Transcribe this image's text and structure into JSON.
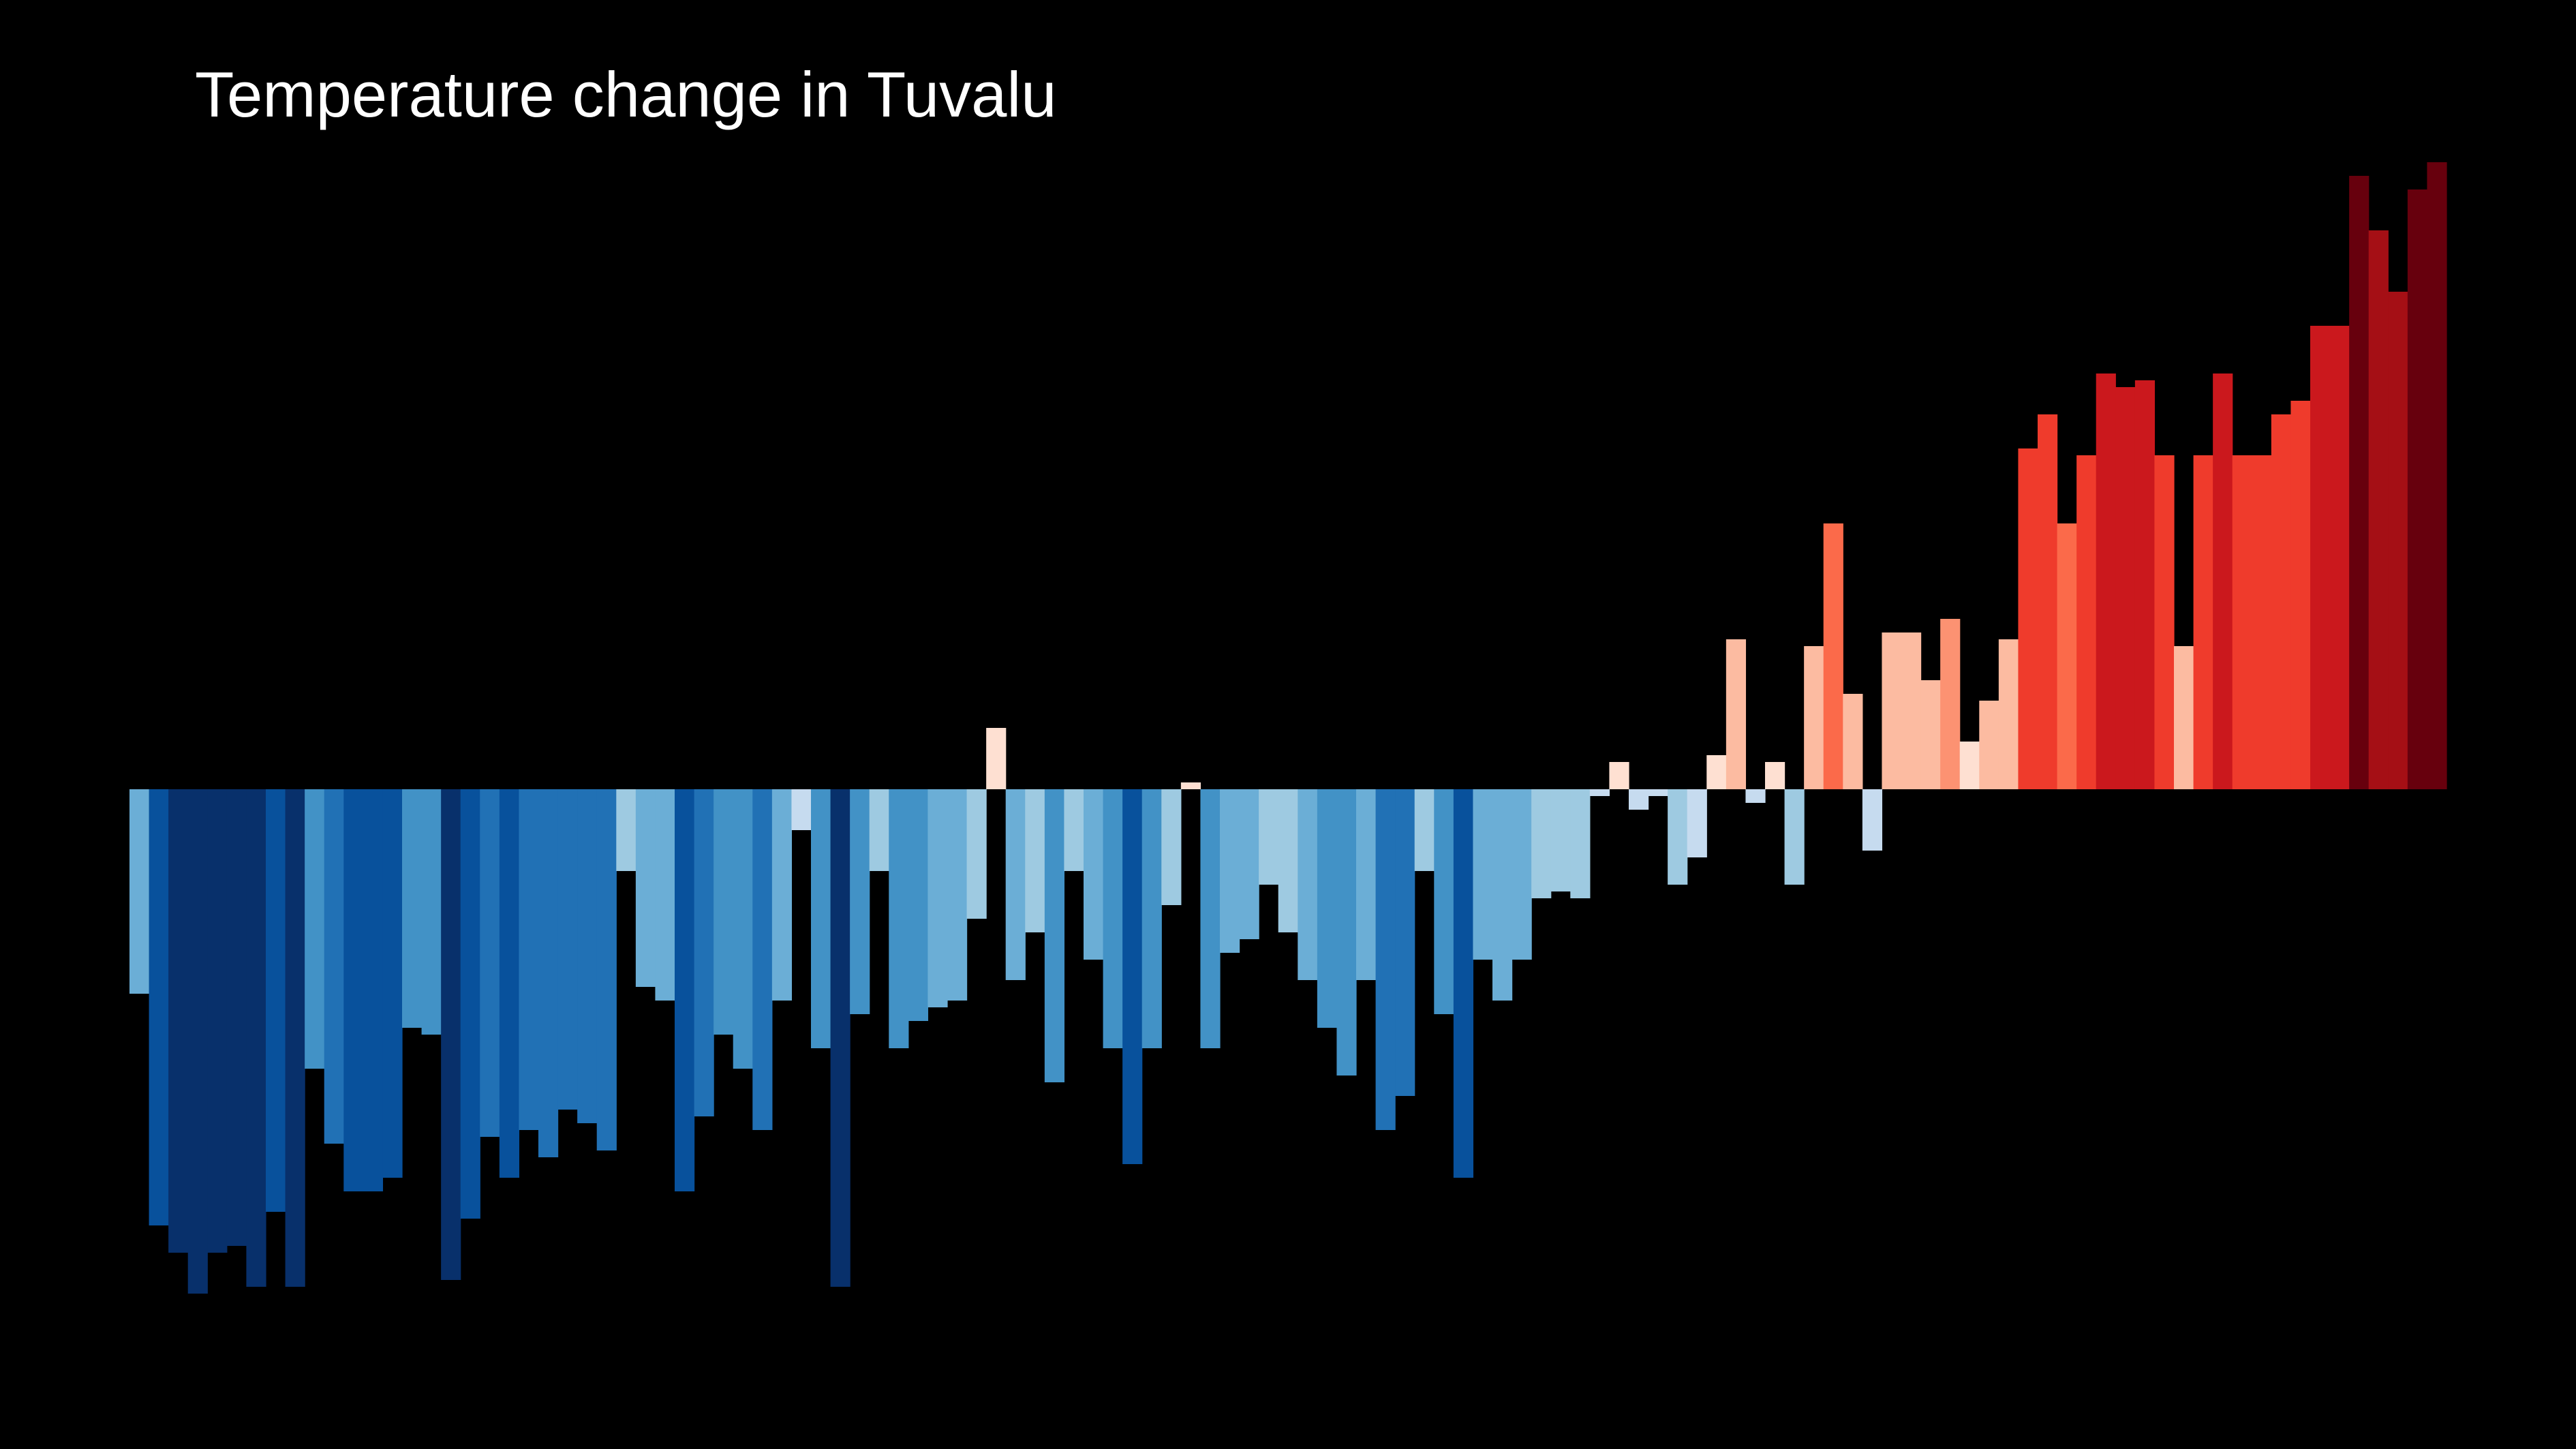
{
  "chart_data": {
    "type": "bar",
    "title": "Temperature change in Tuvalu",
    "xlabel": "",
    "ylabel": "",
    "axes_visible": false,
    "grid": false,
    "legend": "none",
    "background": "#000000",
    "baseline": 0,
    "ylim": [
      -0.76,
      0.94
    ],
    "color_scale": {
      "negative": [
        "#c6dbef",
        "#9ecae1",
        "#6baed6",
        "#4292c6",
        "#2171b5",
        "#08519c",
        "#08306b"
      ],
      "positive": [
        "#fee0d2",
        "#fcbba1",
        "#fc9272",
        "#fb6a4a",
        "#ef3b2c",
        "#cb181d",
        "#a50f15",
        "#67000d"
      ]
    },
    "values": [
      -0.3,
      -0.64,
      -0.68,
      -0.74,
      -0.68,
      -0.67,
      -0.73,
      -0.62,
      -0.73,
      -0.41,
      -0.52,
      -0.59,
      -0.59,
      -0.57,
      -0.35,
      -0.36,
      -0.72,
      -0.63,
      -0.51,
      -0.57,
      -0.5,
      -0.54,
      -0.47,
      -0.49,
      -0.53,
      -0.12,
      -0.29,
      -0.31,
      -0.59,
      -0.48,
      -0.36,
      -0.41,
      -0.5,
      -0.31,
      -0.06,
      -0.38,
      -0.73,
      -0.33,
      -0.12,
      -0.38,
      -0.34,
      -0.32,
      -0.31,
      -0.19,
      0.09,
      -0.28,
      -0.21,
      -0.43,
      -0.12,
      -0.25,
      -0.38,
      -0.55,
      -0.38,
      -0.17,
      0.01,
      -0.38,
      -0.24,
      -0.22,
      -0.14,
      -0.21,
      -0.28,
      -0.35,
      -0.42,
      -0.28,
      -0.5,
      -0.45,
      -0.12,
      -0.33,
      -0.57,
      -0.25,
      -0.31,
      -0.25,
      -0.16,
      -0.15,
      -0.16,
      -0.01,
      0.04,
      -0.03,
      -0.01,
      -0.14,
      -0.1,
      0.05,
      0.22,
      -0.02,
      0.04,
      -0.14,
      0.21,
      0.39,
      0.14,
      -0.09,
      0.23,
      0.23,
      0.16,
      0.25,
      0.07,
      0.13,
      0.22,
      0.5,
      0.55,
      0.39,
      0.49,
      0.61,
      0.59,
      0.6,
      0.49,
      0.21,
      0.49,
      0.61,
      0.49,
      0.49,
      0.55,
      0.57,
      0.68,
      0.68,
      0.9,
      0.82,
      0.73,
      0.88,
      0.92
    ]
  }
}
